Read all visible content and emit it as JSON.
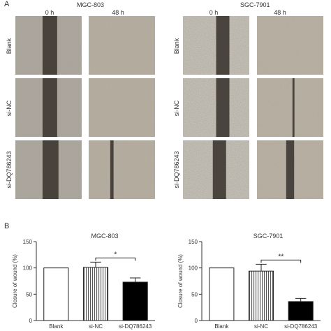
{
  "panel_a": {
    "letter": "A",
    "cell_lines": [
      "MGC-803",
      "SGC-7901"
    ],
    "timepoints": [
      "0 h",
      "48 h"
    ],
    "rows": [
      "Blank",
      "si-NC",
      "si-DQ786243"
    ]
  },
  "panel_b": {
    "letter": "B"
  },
  "colors": {
    "bar_blank": "#ffffff",
    "bar_sinc_stripe": "#555555",
    "bar_si": "#000000",
    "axis": "#333333"
  },
  "chart_data": [
    {
      "type": "bar",
      "title": "MGC-803",
      "categories": [
        "Blank",
        "si-NC",
        "si-DQ786243"
      ],
      "values": [
        100,
        101,
        73
      ],
      "errors": [
        0,
        10,
        8
      ],
      "fill_patterns": [
        "white",
        "vertical-stripes",
        "black"
      ],
      "ylabel": "Closure of wound (%)",
      "ylim": [
        0,
        150
      ],
      "yticks": [
        "0",
        "50",
        "100",
        "150"
      ],
      "significance": {
        "from": "si-NC",
        "to": "si-DQ786243",
        "label": "*"
      }
    },
    {
      "type": "bar",
      "title": "SGC-7901",
      "categories": [
        "Blank",
        "si-NC",
        "si-DQ786243"
      ],
      "values": [
        100,
        94,
        36
      ],
      "errors": [
        0,
        13,
        6
      ],
      "fill_patterns": [
        "white",
        "vertical-stripes",
        "black"
      ],
      "ylabel": "Closure of wound (%)",
      "ylim": [
        0,
        150
      ],
      "yticks": [
        "0",
        "50",
        "100",
        "150"
      ],
      "significance": {
        "from": "si-NC",
        "to": "si-DQ786243",
        "label": "**"
      }
    }
  ]
}
